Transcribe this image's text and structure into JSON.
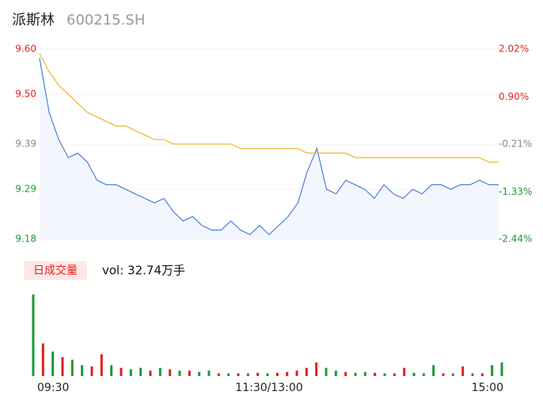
{
  "header": {
    "name": "派斯林",
    "code": "600215.SH"
  },
  "chart_data": [
    {
      "type": "line",
      "categories": [
        "09:30",
        null,
        null,
        null,
        null,
        null,
        null,
        null,
        null,
        null,
        null,
        null,
        null,
        null,
        null,
        null,
        null,
        null,
        null,
        null,
        null,
        null,
        null,
        null,
        "11:30/13:00",
        null,
        null,
        null,
        null,
        null,
        null,
        null,
        null,
        null,
        null,
        null,
        null,
        null,
        null,
        null,
        null,
        null,
        null,
        null,
        null,
        null,
        null,
        null,
        "15:00"
      ],
      "ylim": [
        9.18,
        9.6
      ],
      "yticks": [
        {
          "value": 9.6,
          "label": "9.60"
        },
        {
          "value": 9.5,
          "label": "9.50"
        },
        9.39,
        9.29,
        9.18
      ],
      "ytick_colors": [
        "#e02020",
        "#e02020",
        "#888888",
        "#1a9a3a",
        "#1a9a3a"
      ],
      "y2lim": [
        -2.44,
        2.02
      ],
      "y2ticks": [
        {
          "value": 2.02,
          "label": "2.02%"
        },
        {
          "value": 0.9,
          "label": "0.90%"
        },
        {
          "value": -0.21,
          "label": "-0.21%"
        },
        {
          "value": -1.33,
          "label": "-1.33%"
        },
        {
          "value": -2.44,
          "label": "-2.44%"
        }
      ],
      "y2tick_colors": [
        "#e02020",
        "#e02020",
        "#888888",
        "#1a9a3a",
        "#1a9a3a"
      ],
      "series": [
        {
          "name": "price",
          "color": "#4a7fe0",
          "values": [
            9.58,
            9.46,
            9.4,
            9.36,
            9.37,
            9.35,
            9.31,
            9.3,
            9.3,
            9.29,
            9.28,
            9.27,
            9.26,
            9.27,
            9.24,
            9.22,
            9.23,
            9.21,
            9.2,
            9.2,
            9.22,
            9.2,
            9.19,
            9.21,
            9.19,
            9.21,
            9.23,
            9.26,
            9.33,
            9.38,
            9.29,
            9.28,
            9.31,
            9.3,
            9.29,
            9.27,
            9.3,
            9.28,
            9.27,
            9.29,
            9.28,
            9.3,
            9.3,
            9.29,
            9.3,
            9.3,
            9.31,
            9.3,
            9.3
          ]
        },
        {
          "name": "average",
          "color": "#f0b429",
          "values": [
            9.59,
            9.55,
            9.52,
            9.5,
            9.48,
            9.46,
            9.45,
            9.44,
            9.43,
            9.43,
            9.42,
            9.41,
            9.4,
            9.4,
            9.39,
            9.39,
            9.39,
            9.39,
            9.39,
            9.39,
            9.39,
            9.38,
            9.38,
            9.38,
            9.38,
            9.38,
            9.38,
            9.38,
            9.37,
            9.37,
            9.37,
            9.37,
            9.37,
            9.36,
            9.36,
            9.36,
            9.36,
            9.36,
            9.36,
            9.36,
            9.36,
            9.36,
            9.36,
            9.36,
            9.36,
            9.36,
            9.36,
            9.35,
            9.35
          ]
        }
      ]
    },
    {
      "type": "volume",
      "label": "日成交量",
      "summary": "vol: 32.74万手",
      "values": [
        3.0,
        1.2,
        0.9,
        0.7,
        0.6,
        0.4,
        0.35,
        0.8,
        0.4,
        0.3,
        0.25,
        0.3,
        0.2,
        0.3,
        0.25,
        0.2,
        0.2,
        0.15,
        0.2,
        0.1,
        0.1,
        0.1,
        0.1,
        0.12,
        0.1,
        0.12,
        0.15,
        0.2,
        0.3,
        0.5,
        0.3,
        0.2,
        0.15,
        0.12,
        0.15,
        0.12,
        0.1,
        0.1,
        0.3,
        0.12,
        0.1,
        0.4,
        0.1,
        0.1,
        0.35,
        0.1,
        0.1,
        0.4,
        0.5
      ],
      "colors": [
        "#1a9a3a",
        "#e02020",
        "#1a9a3a",
        "#e02020",
        "#1a9a3a",
        "#1a9a3a",
        "#e02020",
        "#e02020",
        "#1a9a3a",
        "#e02020",
        "#1a9a3a",
        "#1a9a3a",
        "#e02020",
        "#1a9a3a",
        "#e02020",
        "#1a9a3a",
        "#e02020",
        "#1a9a3a",
        "#1a9a3a",
        "#e02020",
        "#1a9a3a",
        "#e02020",
        "#1a9a3a",
        "#e02020",
        "#1a9a3a",
        "#e02020",
        "#e02020",
        "#e02020",
        "#e02020",
        "#e02020",
        "#1a9a3a",
        "#1a9a3a",
        "#e02020",
        "#1a9a3a",
        "#1a9a3a",
        "#e02020",
        "#1a9a3a",
        "#e02020",
        "#e02020",
        "#1a9a3a",
        "#1a9a3a",
        "#1a9a3a",
        "#e02020",
        "#1a9a3a",
        "#e02020",
        "#1a9a3a",
        "#e02020",
        "#1a9a3a",
        "#1a9a3a"
      ]
    }
  ]
}
